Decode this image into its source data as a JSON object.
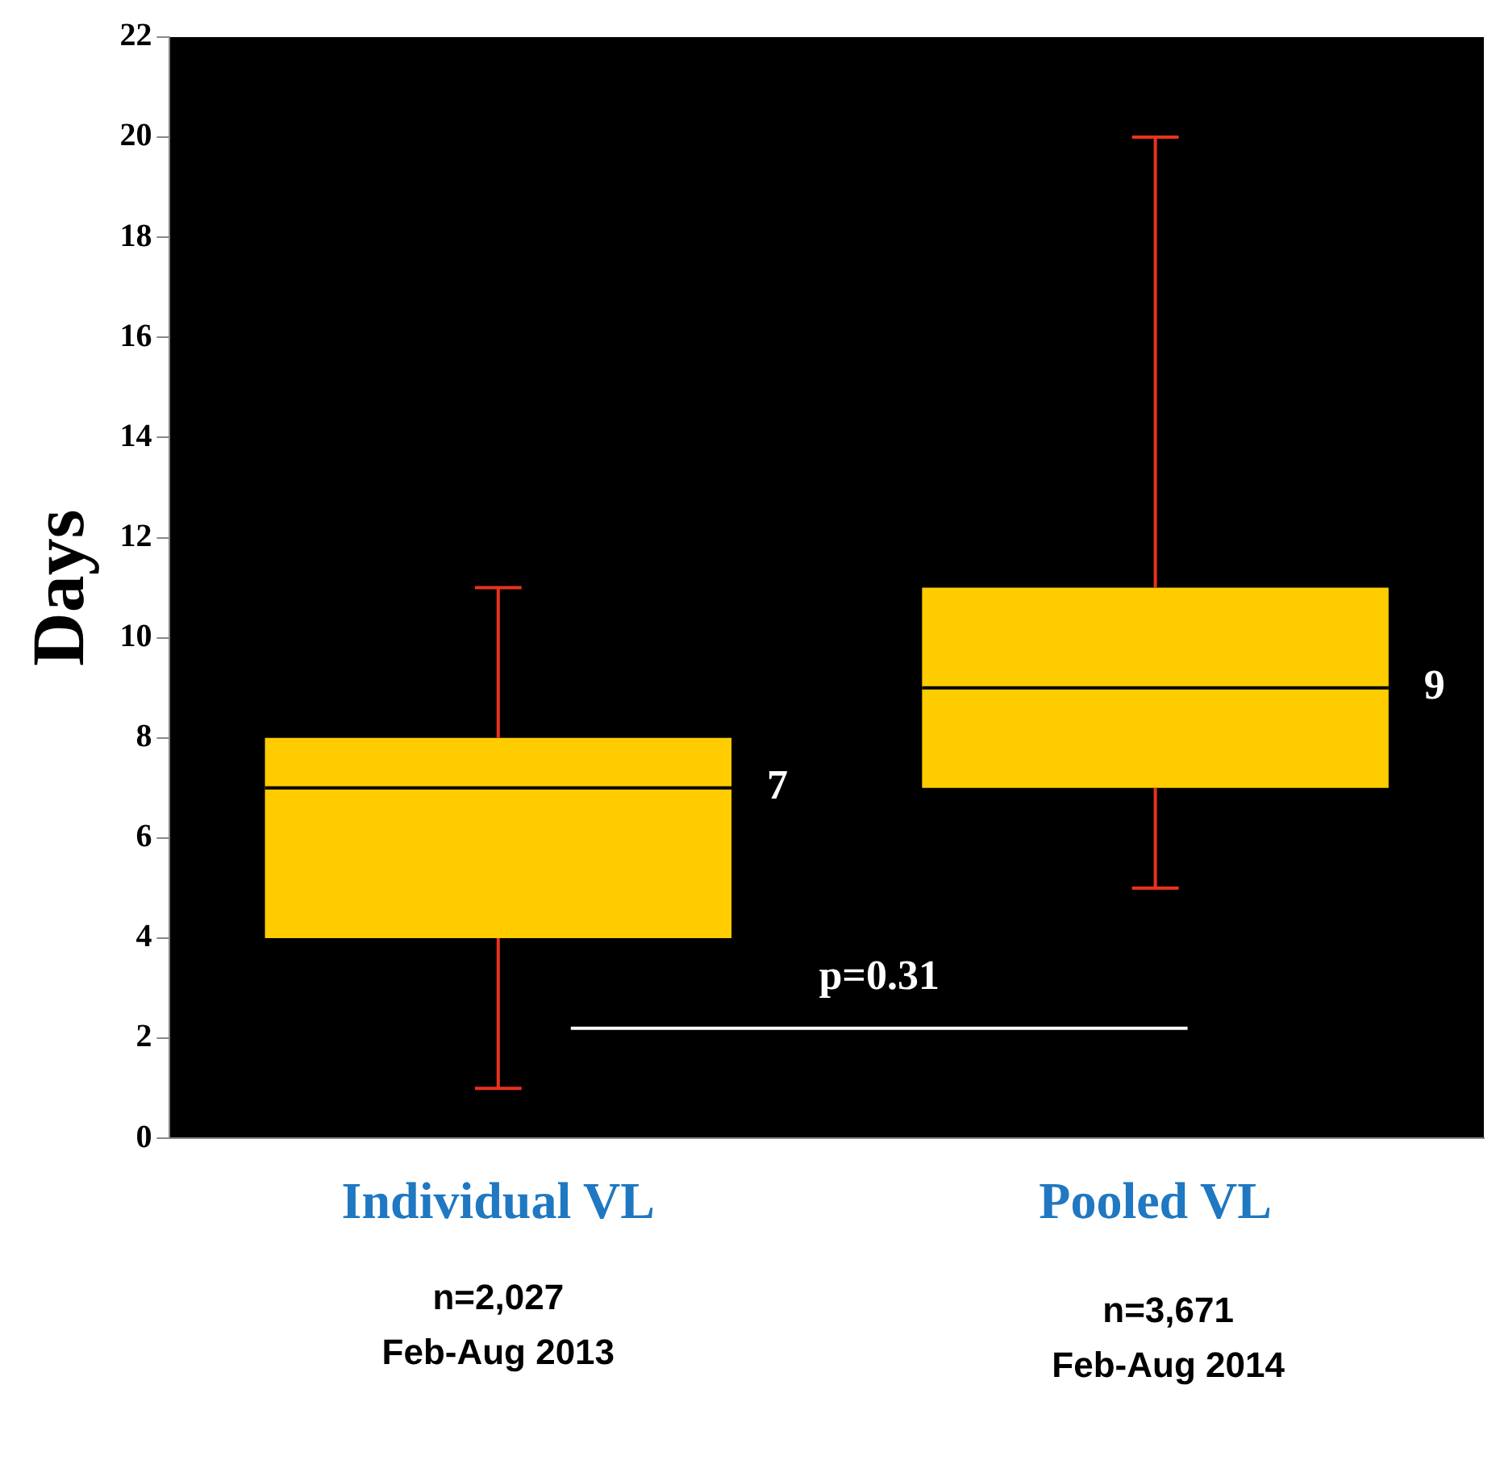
{
  "chart_data": {
    "type": "box",
    "ylabel": "Days",
    "categories": [
      "Individual VL",
      "Pooled VL"
    ],
    "boxes": [
      {
        "low": 1,
        "q1": 4,
        "median": 7,
        "q3": 8,
        "high": 11
      },
      {
        "low": 5,
        "q1": 7,
        "median": 9,
        "q3": 11,
        "high": 20
      }
    ],
    "color": "#ffcc00",
    "ylim": [
      0,
      22
    ],
    "yticks": [
      0,
      2,
      4,
      6,
      8,
      10,
      12,
      14,
      16,
      18,
      20,
      22
    ],
    "grid": false,
    "legend": false,
    "annotations": [
      "7",
      "9",
      "p=0.31",
      "n=2,027",
      "Feb-Aug 2013",
      "n=3,671",
      "Feb-Aug 2014"
    ]
  }
}
